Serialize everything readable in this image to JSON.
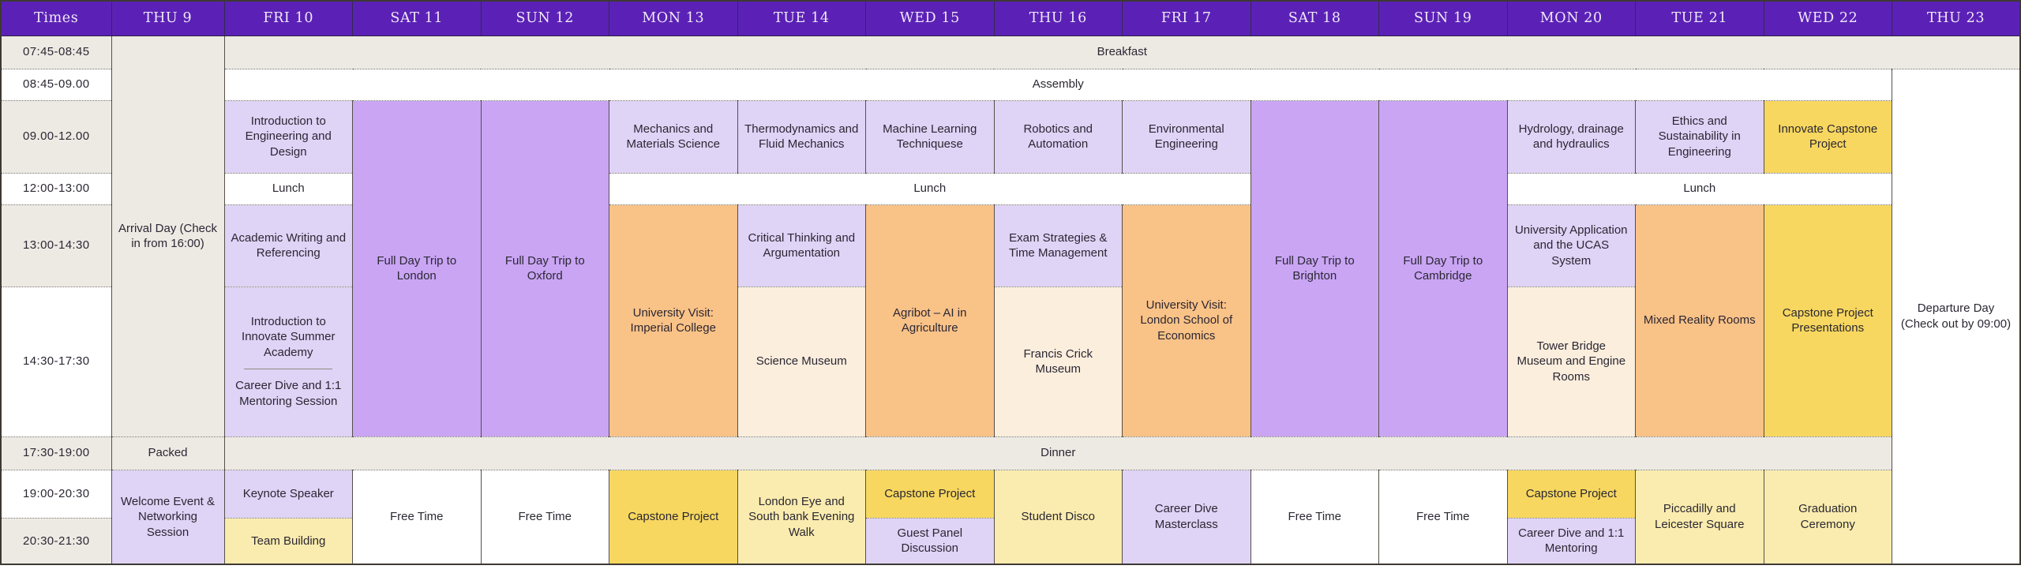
{
  "palette": {
    "header": "#5B21B6",
    "header_text": "#EFE8F8",
    "neutral": "#EDEAE4",
    "lesson": "#DFD3F6",
    "trip": "#C9A5F4",
    "visit": "#F9C287",
    "museum": "#FBEEDD",
    "capstone": "#F7D75F",
    "evening": "#FAECAE",
    "free": "#FFFFFF"
  },
  "header": {
    "times_label": "Times",
    "days": [
      "THU 9",
      "FRI 10",
      "SAT 11",
      "SUN 12",
      "MON 13",
      "TUE 14",
      "WED 15",
      "THU 16",
      "FRI 17",
      "SAT 18",
      "SUN 19",
      "MON 20",
      "TUE 21",
      "WED 22",
      "THU 23"
    ]
  },
  "times": [
    "07:45-08:45",
    "08:45-09.00",
    "09.00-12.00",
    "12:00-13:00",
    "13:00-14:30",
    "14:30-17:30",
    "17:30-19:00",
    "19:00-20:30",
    "20:30-21:30"
  ],
  "cells": {
    "arrival": {
      "text": "Arrival Day (Check in from 16:00)"
    },
    "breakfast": {
      "text": "Breakfast"
    },
    "assembly": {
      "text": "Assembly"
    },
    "departure": {
      "text": "Departure Day (Check out by 09:00)"
    },
    "fri10_intro_eng": {
      "text": "Introduction to Engineering and Design"
    },
    "trip_london": {
      "text": "Full Day Trip to London"
    },
    "trip_oxford": {
      "text": "Full Day Trip to Oxford"
    },
    "mon13_mechanics": {
      "text": "Mechanics and Materials Science"
    },
    "tue14_thermo": {
      "text": "Thermodynamics and Fluid Mechanics"
    },
    "wed15_ml": {
      "text": "Machine Learning Techniquese"
    },
    "thu16_robotics": {
      "text": "Robotics and Automation"
    },
    "fri17_environmental": {
      "text": "Environmental Engineering"
    },
    "trip_brighton": {
      "text": "Full Day Trip to Brighton"
    },
    "trip_cambridge": {
      "text": "Full Day Trip to Cambridge"
    },
    "mon20_hydrology": {
      "text": "Hydrology, drainage and hydraulics"
    },
    "tue21_ethics": {
      "text": "Ethics and Sustainability in Engineering"
    },
    "wed22_innovate_capstone": {
      "text": "Innovate Capstone Project"
    },
    "lunch_fri10": {
      "text": "Lunch"
    },
    "lunch_mon_fri": {
      "text": "Lunch"
    },
    "lunch_mon_wed": {
      "text": "Lunch"
    },
    "fri10_academic": {
      "text": "Academic Writing and Referencing"
    },
    "mon13_imperial": {
      "text": "University Visit: Imperial College"
    },
    "tue14_critical": {
      "text": "Critical Thinking and Argumentation"
    },
    "wed15_agribot": {
      "text": "Agribot – AI in Agriculture"
    },
    "thu16_exam": {
      "text": "Exam Strategies & Time Management"
    },
    "fri17_lse": {
      "text": "University Visit: London School of Economics"
    },
    "mon20_ucas": {
      "text": "University Application and the UCAS System"
    },
    "tue21_mixed_reality": {
      "text": "Mixed Reality Rooms"
    },
    "wed22_capstone_presentations": {
      "text": "Capstone Project Presentations"
    },
    "fri10_innovate_intro": {
      "text": "Introduction to Innovate Summer Academy"
    },
    "fri10_career_session": {
      "text": "Career Dive and 1:1 Mentoring Session"
    },
    "tue14_science_museum": {
      "text": "Science Museum"
    },
    "thu16_francis_crick": {
      "text": "Francis Crick Museum"
    },
    "mon20_tower_bridge": {
      "text": "Tower Bridge Museum and Engine Rooms"
    },
    "packed": {
      "text": "Packed"
    },
    "dinner": {
      "text": "Dinner"
    },
    "thu9_welcome": {
      "text": "Welcome Event & Networking Session"
    },
    "fri10_keynote": {
      "text": "Keynote Speaker"
    },
    "fri10_team_building": {
      "text": "Team Building"
    },
    "free_sat11": {
      "text": "Free Time"
    },
    "free_sun12": {
      "text": "Free Time"
    },
    "free_sat18": {
      "text": "Free Time"
    },
    "free_sun19": {
      "text": "Free Time"
    },
    "mon13_capstone": {
      "text": "Capstone Project"
    },
    "tue14_london_eye": {
      "text": "London Eye and South bank Evening Walk"
    },
    "wed15_capstone": {
      "text": "Capstone Project"
    },
    "wed15_guest_panel": {
      "text": "Guest Panel Discussion"
    },
    "thu16_disco": {
      "text": "Student Disco"
    },
    "fri17_career_masterclass": {
      "text": "Career Dive Masterclass"
    },
    "mon20_capstone": {
      "text": "Capstone Project"
    },
    "mon20_career_mentoring": {
      "text": "Career Dive and 1:1 Mentoring"
    },
    "tue21_piccadilly": {
      "text": "Piccadilly and Leicester Square"
    },
    "wed22_graduation": {
      "text": "Graduation Ceremony"
    }
  }
}
